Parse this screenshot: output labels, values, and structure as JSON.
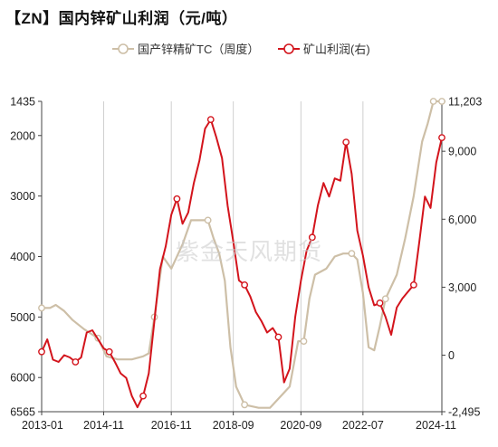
{
  "title": "【ZN】国内锌矿山利润（元/吨）",
  "watermark": "紫金天风期货",
  "colors": {
    "tc": "#cdbfa7",
    "profit": "#d3141c",
    "grid": "#cfcfcf",
    "axis": "#444444"
  },
  "chart_data": {
    "type": "line",
    "x_ticks": [
      "2013-01",
      "2014-11",
      "2016-11",
      "2018-09",
      "2020-09",
      "2022-07",
      "2024-11"
    ],
    "xlim": [
      "2013-01",
      "2024-11"
    ],
    "y_left": {
      "label": "",
      "reversed": true,
      "lim": [
        1435,
        6565
      ],
      "ticks": [
        1435,
        2000,
        3000,
        4000,
        5000,
        6000,
        6565
      ]
    },
    "y_right": {
      "label": "",
      "lim": [
        -2495,
        11203
      ],
      "ticks": [
        "-2,495",
        "0",
        "3,000",
        "6,000",
        "9,000",
        "11,203"
      ]
    },
    "grid": "vertical",
    "legend_position": "top",
    "series": [
      {
        "name": "国产锌精矿TC（周度）",
        "axis": "left",
        "marker": "hollow-circle",
        "points": [
          [
            "2013-01",
            4850
          ],
          [
            "2013-04",
            4850
          ],
          [
            "2013-06",
            4800
          ],
          [
            "2013-09",
            4900
          ],
          [
            "2013-12",
            5050
          ],
          [
            "2014-04",
            5200
          ],
          [
            "2014-09",
            5350
          ],
          [
            "2014-12",
            5650
          ],
          [
            "2015-04",
            5700
          ],
          [
            "2015-09",
            5700
          ],
          [
            "2016-01",
            5650
          ],
          [
            "2016-03",
            5600
          ],
          [
            "2016-05",
            5000
          ],
          [
            "2016-08",
            4000
          ],
          [
            "2016-11",
            4200
          ],
          [
            "2017-03",
            3800
          ],
          [
            "2017-06",
            3400
          ],
          [
            "2017-09",
            3400
          ],
          [
            "2017-12",
            3400
          ],
          [
            "2018-02",
            3700
          ],
          [
            "2018-04",
            3950
          ],
          [
            "2018-06",
            4400
          ],
          [
            "2018-08",
            5500
          ],
          [
            "2018-10",
            6150
          ],
          [
            "2019-01",
            6450
          ],
          [
            "2019-06",
            6500
          ],
          [
            "2019-10",
            6500
          ],
          [
            "2020-01",
            6350
          ],
          [
            "2020-05",
            6150
          ],
          [
            "2020-08",
            5400
          ],
          [
            "2020-10",
            5400
          ],
          [
            "2020-12",
            4700
          ],
          [
            "2021-02",
            4300
          ],
          [
            "2021-06",
            4200
          ],
          [
            "2021-09",
            4000
          ],
          [
            "2021-12",
            3950
          ],
          [
            "2022-03",
            3950
          ],
          [
            "2022-05",
            4050
          ],
          [
            "2022-07",
            4600
          ],
          [
            "2022-09",
            5500
          ],
          [
            "2022-11",
            5550
          ],
          [
            "2023-01",
            5150
          ],
          [
            "2023-03",
            4700
          ],
          [
            "2023-07",
            4300
          ],
          [
            "2023-10",
            3700
          ],
          [
            "2024-01",
            3000
          ],
          [
            "2024-04",
            2100
          ],
          [
            "2024-06",
            1800
          ],
          [
            "2024-08",
            1435
          ],
          [
            "2024-11",
            1435
          ]
        ]
      },
      {
        "name": "矿山利润(右)",
        "axis": "right",
        "marker": "hollow-circle",
        "points": [
          [
            "2013-01",
            150
          ],
          [
            "2013-03",
            700
          ],
          [
            "2013-05",
            -200
          ],
          [
            "2013-07",
            -300
          ],
          [
            "2013-09",
            0
          ],
          [
            "2013-11",
            -100
          ],
          [
            "2014-01",
            -300
          ],
          [
            "2014-03",
            -100
          ],
          [
            "2014-05",
            1000
          ],
          [
            "2014-07",
            1100
          ],
          [
            "2014-09",
            700
          ],
          [
            "2014-11",
            300
          ],
          [
            "2015-01",
            150
          ],
          [
            "2015-03",
            -300
          ],
          [
            "2015-05",
            -800
          ],
          [
            "2015-07",
            -1000
          ],
          [
            "2015-09",
            -1800
          ],
          [
            "2015-11",
            -2300
          ],
          [
            "2016-01",
            -1800
          ],
          [
            "2016-03",
            -800
          ],
          [
            "2016-05",
            1500
          ],
          [
            "2016-07",
            3800
          ],
          [
            "2016-09",
            4800
          ],
          [
            "2016-11",
            6200
          ],
          [
            "2017-01",
            6900
          ],
          [
            "2017-03",
            5800
          ],
          [
            "2017-05",
            6300
          ],
          [
            "2017-07",
            7600
          ],
          [
            "2017-09",
            8600
          ],
          [
            "2017-11",
            10000
          ],
          [
            "2018-01",
            10400
          ],
          [
            "2018-03",
            9600
          ],
          [
            "2018-05",
            8700
          ],
          [
            "2018-07",
            6600
          ],
          [
            "2018-09",
            5000
          ],
          [
            "2018-11",
            3300
          ],
          [
            "2019-01",
            3100
          ],
          [
            "2019-03",
            2600
          ],
          [
            "2019-05",
            1900
          ],
          [
            "2019-07",
            1500
          ],
          [
            "2019-09",
            1000
          ],
          [
            "2019-11",
            1200
          ],
          [
            "2020-01",
            800
          ],
          [
            "2020-03",
            -1200
          ],
          [
            "2020-05",
            -600
          ],
          [
            "2020-07",
            1700
          ],
          [
            "2020-09",
            3300
          ],
          [
            "2020-11",
            4600
          ],
          [
            "2021-01",
            5200
          ],
          [
            "2021-03",
            6600
          ],
          [
            "2021-05",
            7600
          ],
          [
            "2021-07",
            7000
          ],
          [
            "2021-09",
            7800
          ],
          [
            "2021-11",
            7700
          ],
          [
            "2022-01",
            9400
          ],
          [
            "2022-03",
            8000
          ],
          [
            "2022-05",
            5500
          ],
          [
            "2022-07",
            4400
          ],
          [
            "2022-09",
            3000
          ],
          [
            "2022-11",
            2200
          ],
          [
            "2023-01",
            2300
          ],
          [
            "2023-03",
            1700
          ],
          [
            "2023-05",
            900
          ],
          [
            "2023-07",
            2100
          ],
          [
            "2023-09",
            2500
          ],
          [
            "2023-11",
            2800
          ],
          [
            "2024-01",
            3100
          ],
          [
            "2024-03",
            5000
          ],
          [
            "2024-05",
            7000
          ],
          [
            "2024-07",
            6500
          ],
          [
            "2024-09",
            8500
          ],
          [
            "2024-11",
            9600
          ]
        ]
      }
    ]
  }
}
